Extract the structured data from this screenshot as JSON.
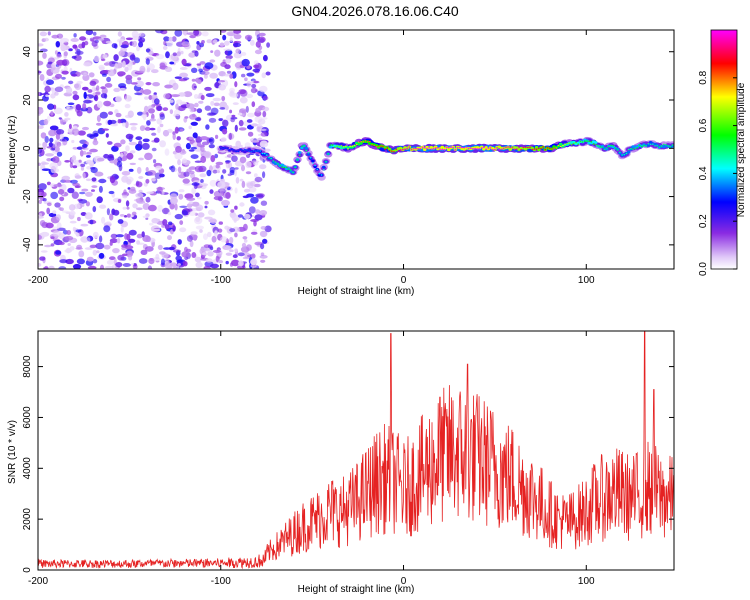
{
  "page": {
    "title": "GN04.2026.078.16.06.C40"
  },
  "colors": {
    "snr_line": "#e52222",
    "colormap": [
      "#ffffff",
      "#d8b8f4",
      "#8a2be2",
      "#0000ff",
      "#00ffff",
      "#00ff00",
      "#ffff00",
      "#ff0000",
      "#ff00ff"
    ]
  },
  "chart_data": [
    {
      "type": "heatmap",
      "title": "GN04.2026.078.16.06.C40",
      "xlabel": "Height of straight line (km)",
      "ylabel": "Frequency (Hz)",
      "xlim": [
        -200,
        148
      ],
      "ylim": [
        -50,
        49
      ],
      "xticks": [
        -200,
        -100,
        0,
        100
      ],
      "yticks": [
        -40,
        -20,
        0,
        20,
        40
      ],
      "xtick_labels": [
        "-200",
        "-100",
        "0",
        "100"
      ],
      "ytick_labels": [
        "-40",
        "-20",
        "0",
        "20",
        "40"
      ],
      "noise_region_x": [
        -200,
        -80
      ],
      "colorbar": {
        "label": "Normalized spectral amplitude",
        "range": [
          0,
          1
        ],
        "ticks": [
          0.0,
          0.2,
          0.4,
          0.6,
          0.8
        ],
        "tick_labels": [
          "0.0",
          "0.2",
          "0.4",
          "0.6",
          "0.8"
        ]
      },
      "ridge": {
        "x": [
          -100,
          -90,
          -80,
          -75,
          -70,
          -65,
          -60,
          -55,
          -50,
          -45,
          -40,
          -35,
          -30,
          -25,
          -20,
          -15,
          -10,
          -5,
          0,
          10,
          20,
          30,
          40,
          50,
          60,
          70,
          80,
          85,
          90,
          95,
          100,
          105,
          110,
          115,
          120,
          125,
          130,
          135,
          140,
          148
        ],
        "freq": [
          0,
          -1,
          -1,
          -3,
          -6,
          -8,
          -10,
          2,
          -5,
          -12,
          1,
          1,
          0,
          2,
          3,
          1,
          0,
          -1,
          0,
          0,
          0,
          0,
          0,
          0,
          0,
          0,
          0,
          1,
          2,
          2,
          3,
          2,
          0,
          1,
          -3,
          0,
          1,
          2,
          1,
          1
        ],
        "amplitude": [
          0.3,
          0.3,
          0.35,
          0.45,
          0.5,
          0.55,
          0.5,
          0.55,
          0.4,
          0.4,
          0.55,
          0.65,
          0.7,
          0.75,
          0.8,
          0.8,
          0.85,
          0.9,
          0.95,
          1.0,
          1.0,
          1.0,
          1.0,
          1.0,
          0.95,
          0.9,
          0.85,
          0.75,
          0.65,
          0.6,
          0.55,
          0.6,
          0.5,
          0.55,
          0.45,
          0.5,
          0.55,
          0.45,
          0.5,
          0.5
        ]
      }
    },
    {
      "type": "line",
      "xlabel": "Height of straight line (km)",
      "ylabel": "SNR (10 * v/v)",
      "xlim": [
        -200,
        148
      ],
      "ylim": [
        0,
        9400
      ],
      "xticks": [
        -200,
        -100,
        0,
        100
      ],
      "yticks": [
        0,
        2000,
        4000,
        6000,
        8000
      ],
      "xtick_labels": [
        "-200",
        "-100",
        "0",
        "100"
      ],
      "ytick_labels": [
        "0",
        "2000",
        "4000",
        "6000",
        "8000"
      ],
      "series": [
        {
          "name": "SNR",
          "envelope_x": [
            -200,
            -150,
            -100,
            -80,
            -75,
            -70,
            -65,
            -60,
            -55,
            -50,
            -45,
            -40,
            -35,
            -30,
            -25,
            -20,
            -15,
            -10,
            -5,
            0,
            5,
            10,
            15,
            20,
            25,
            30,
            35,
            40,
            45,
            50,
            55,
            60,
            65,
            70,
            75,
            80,
            85,
            90,
            95,
            100,
            105,
            110,
            115,
            120,
            125,
            130,
            135,
            140,
            145,
            148
          ],
          "envelope_y": [
            300,
            300,
            350,
            450,
            700,
            1000,
            1300,
            1600,
            1900,
            2100,
            2300,
            2600,
            2500,
            2700,
            3000,
            3400,
            3800,
            4000,
            3900,
            3500,
            3800,
            4200,
            4600,
            4900,
            5100,
            5200,
            5000,
            4900,
            4700,
            4500,
            4200,
            4000,
            3600,
            3300,
            2900,
            2500,
            2200,
            2100,
            2300,
            2600,
            3000,
            3200,
            3400,
            3300,
            3100,
            3400,
            3600,
            3300,
            3100,
            3200
          ],
          "peaks_x": [
            -7,
            20,
            35,
            132,
            137
          ],
          "peaks_y": [
            9300,
            6800,
            8100,
            9400,
            7100
          ]
        }
      ]
    }
  ]
}
